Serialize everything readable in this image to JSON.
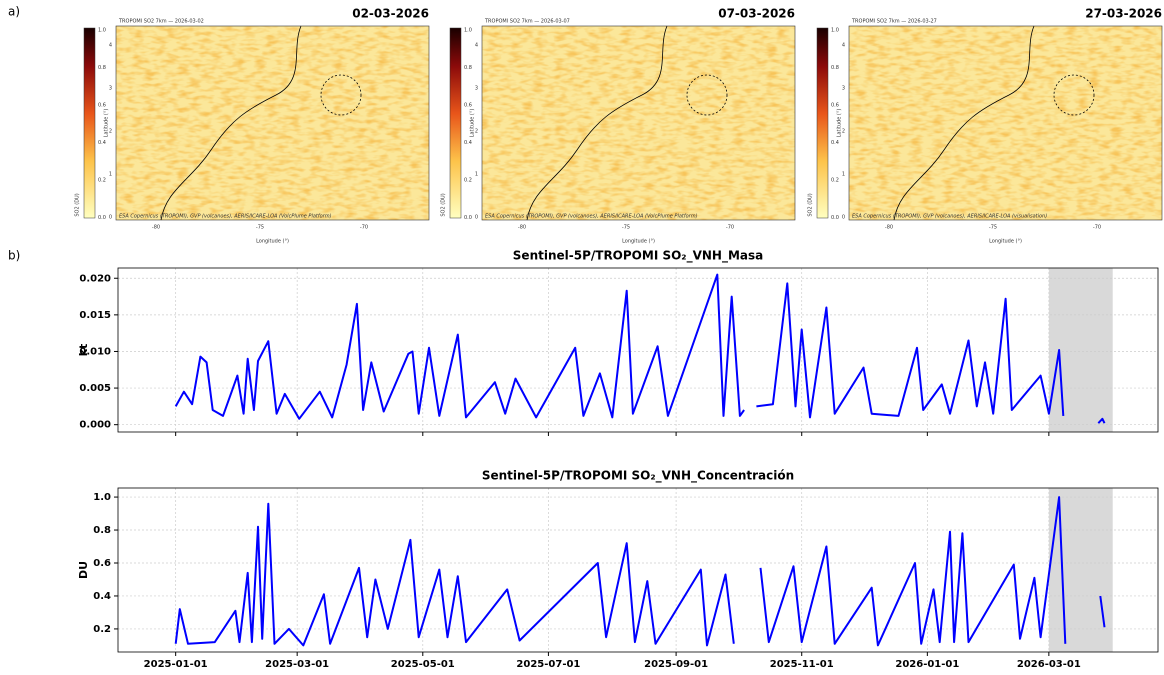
{
  "panels": {
    "a": "a)",
    "b": "b)"
  },
  "maps": {
    "xlabel": "Longitude (°)",
    "ylabel": "Latitude (°)",
    "cbar_label": "SO2 (DU)",
    "cbar_ticks": [
      "1.0",
      "0.8",
      "0.6",
      "0.4",
      "0.2",
      "0.0"
    ],
    "xticks": [
      "-80",
      "-75",
      "-70"
    ],
    "yticks": [
      "4",
      "3",
      "2",
      "1",
      "0"
    ],
    "items": [
      {
        "title": "02-03-2026",
        "header": "TROPOMI SO2 7km — 2026-03-02",
        "credit": "ESA Copernicus (TROPOMI), GVP (volcanoes), AERIS/ICARE-LOA (VolcPlume Platform)"
      },
      {
        "title": "07-03-2026",
        "header": "TROPOMI SO2 7km — 2026-03-07",
        "credit": "ESA Copernicus (TROPOMI), GVP (volcanoes), AERIS/ICARE-LOA (VolcPlume Platform)"
      },
      {
        "title": "27-03-2026",
        "header": "TROPOMI SO2 7km — 2026-03-27",
        "credit": "ESA Copernicus (TROPOMI), GVP (volcanoes), AERIS/ICARE-LOA (visualisation)"
      }
    ]
  },
  "chart_data": [
    {
      "type": "line",
      "title": "Sentinel-5P/TROPOMI SO₂_VNH_Masa",
      "ylabel": "kt",
      "color": "#0000ff",
      "grid": true,
      "xlim": [
        "2024-12-04",
        "2026-04-23"
      ],
      "highlight": [
        "2026-03-01",
        "2026-04-01"
      ],
      "highlight_color": "#d9d9d9",
      "ylim": [
        -0.001,
        0.0214
      ],
      "yticks": [
        {
          "value": 0,
          "label": "0.000"
        },
        {
          "value": 0.005,
          "label": "0.005"
        },
        {
          "value": 0.01,
          "label": "0.010"
        },
        {
          "value": 0.015,
          "label": "0.015"
        },
        {
          "value": 0.02,
          "label": "0.020"
        }
      ],
      "x": [
        "2025-01-01",
        "2025-01-05",
        "2025-01-09",
        "2025-01-13",
        "2025-01-16",
        "2025-01-19",
        "2025-01-24",
        "2025-01-31",
        "2025-02-03",
        "2025-02-05",
        "2025-02-08",
        "2025-02-10",
        "2025-02-15",
        "2025-02-19",
        "2025-02-23",
        "2025-03-02",
        "2025-03-12",
        "2025-03-18",
        "2025-03-25",
        "2025-03-30",
        "2025-04-02",
        "2025-04-06",
        "2025-04-12",
        "2025-04-24",
        "2025-04-26",
        "2025-04-29",
        "2025-05-04",
        "2025-05-09",
        "2025-05-18",
        "2025-05-22",
        "2025-06-05",
        "2025-06-10",
        "2025-06-15",
        "2025-06-25",
        "2025-07-14",
        "2025-07-18",
        "2025-07-26",
        "2025-08-01",
        "2025-08-08",
        "2025-08-11",
        "2025-08-23",
        "2025-08-28",
        "2025-09-21",
        "2025-09-24",
        "2025-09-28",
        "2025-10-02",
        "2025-10-04",
        "2025-10-07",
        "2025-10-10",
        "2025-10-18",
        "2025-10-25",
        "2025-10-29",
        "2025-11-01",
        "2025-11-05",
        "2025-11-13",
        "2025-11-17",
        "2025-12-01",
        "2025-12-05",
        "2025-12-18",
        "2025-12-27",
        "2025-12-30",
        "2026-01-08",
        "2026-01-12",
        "2026-01-21",
        "2026-01-25",
        "2026-01-29",
        "2026-02-02",
        "2026-02-08",
        "2026-02-11",
        "2026-02-25",
        "2026-03-01",
        "2026-03-06",
        "2026-03-08",
        "2026-03-09",
        "2026-03-25",
        "2026-03-27",
        "2026-03-28"
      ],
      "values": [
        0.0025,
        0.0045,
        0.0028,
        0.0093,
        0.0085,
        0.002,
        0.0012,
        0.0067,
        0.0015,
        0.009,
        0.002,
        0.0087,
        0.0114,
        0.0015,
        0.0042,
        0.0008,
        0.0045,
        0.001,
        0.0082,
        0.0165,
        0.002,
        0.0085,
        0.0018,
        0.0097,
        0.01,
        0.0015,
        0.0105,
        0.0012,
        0.0123,
        0.001,
        0.0058,
        0.0015,
        0.0063,
        0.001,
        0.0105,
        0.0012,
        0.007,
        0.001,
        0.0183,
        0.0015,
        0.0107,
        0.0012,
        0.0205,
        0.0012,
        0.0175,
        0.0012,
        0.002,
        null,
        0.0025,
        0.0028,
        0.0193,
        0.0025,
        0.013,
        0.001,
        0.016,
        0.0015,
        0.0078,
        0.0015,
        0.0012,
        0.0105,
        0.002,
        0.0055,
        0.0015,
        0.0115,
        0.0025,
        0.0085,
        0.0015,
        0.0172,
        0.002,
        0.0067,
        0.0015,
        0.0102,
        0.0012,
        null,
        0.0002,
        0.0008,
        0.0002
      ]
    },
    {
      "type": "line",
      "title": "Sentinel-5P/TROPOMI SO₂_VNH_Concentración",
      "ylabel": "DU",
      "color": "#0000ff",
      "grid": true,
      "xlim": [
        "2024-12-04",
        "2026-04-23"
      ],
      "highlight": [
        "2026-03-01",
        "2026-04-01"
      ],
      "highlight_color": "#d9d9d9",
      "ylim": [
        0.06,
        1.055
      ],
      "yticks": [
        0.2,
        0.4,
        0.6,
        0.8,
        {
          "value": 1,
          "label": "1.0"
        }
      ],
      "xticks": [
        "2025-01-01",
        "2025-03-01",
        "2025-05-01",
        "2025-07-01",
        "2025-09-01",
        "2025-11-01",
        "2026-01-01",
        "2026-03-01"
      ],
      "x": [
        "2025-01-01",
        "2025-01-03",
        "2025-01-07",
        "2025-01-20",
        "2025-01-30",
        "2025-02-01",
        "2025-02-05",
        "2025-02-07",
        "2025-02-10",
        "2025-02-12",
        "2025-02-15",
        "2025-02-18",
        "2025-02-25",
        "2025-03-04",
        "2025-03-14",
        "2025-03-17",
        "2025-03-31",
        "2025-04-04",
        "2025-04-08",
        "2025-04-14",
        "2025-04-25",
        "2025-04-29",
        "2025-05-09",
        "2025-05-13",
        "2025-05-18",
        "2025-05-22",
        "2025-06-11",
        "2025-06-17",
        "2025-07-25",
        "2025-07-29",
        "2025-08-08",
        "2025-08-12",
        "2025-08-18",
        "2025-08-22",
        "2025-09-13",
        "2025-09-16",
        "2025-09-25",
        "2025-09-29",
        "2025-10-07",
        "2025-10-12",
        "2025-10-16",
        "2025-10-28",
        "2025-11-01",
        "2025-11-13",
        "2025-11-17",
        "2025-12-05",
        "2025-12-08",
        "2025-12-26",
        "2025-12-29",
        "2026-01-04",
        "2026-01-07",
        "2026-01-12",
        "2026-01-14",
        "2026-01-18",
        "2026-01-21",
        "2026-02-12",
        "2026-02-15",
        "2026-02-22",
        "2026-02-25",
        "2026-03-06",
        "2026-03-09",
        "2026-03-10",
        "2026-03-26",
        "2026-03-28"
      ],
      "values": [
        0.11,
        0.32,
        0.11,
        0.12,
        0.31,
        0.12,
        0.54,
        0.12,
        0.82,
        0.14,
        0.96,
        0.11,
        0.2,
        0.1,
        0.41,
        0.11,
        0.57,
        0.15,
        0.5,
        0.2,
        0.74,
        0.15,
        0.56,
        0.15,
        0.52,
        0.12,
        0.44,
        0.13,
        0.6,
        0.15,
        0.72,
        0.12,
        0.49,
        0.11,
        0.56,
        0.1,
        0.53,
        0.11,
        null,
        0.57,
        0.12,
        0.58,
        0.12,
        0.7,
        0.11,
        0.45,
        0.1,
        0.6,
        0.11,
        0.44,
        0.12,
        0.79,
        0.12,
        0.78,
        0.12,
        0.59,
        0.14,
        0.51,
        0.15,
        1.0,
        0.11,
        null,
        0.4,
        0.21
      ]
    }
  ]
}
